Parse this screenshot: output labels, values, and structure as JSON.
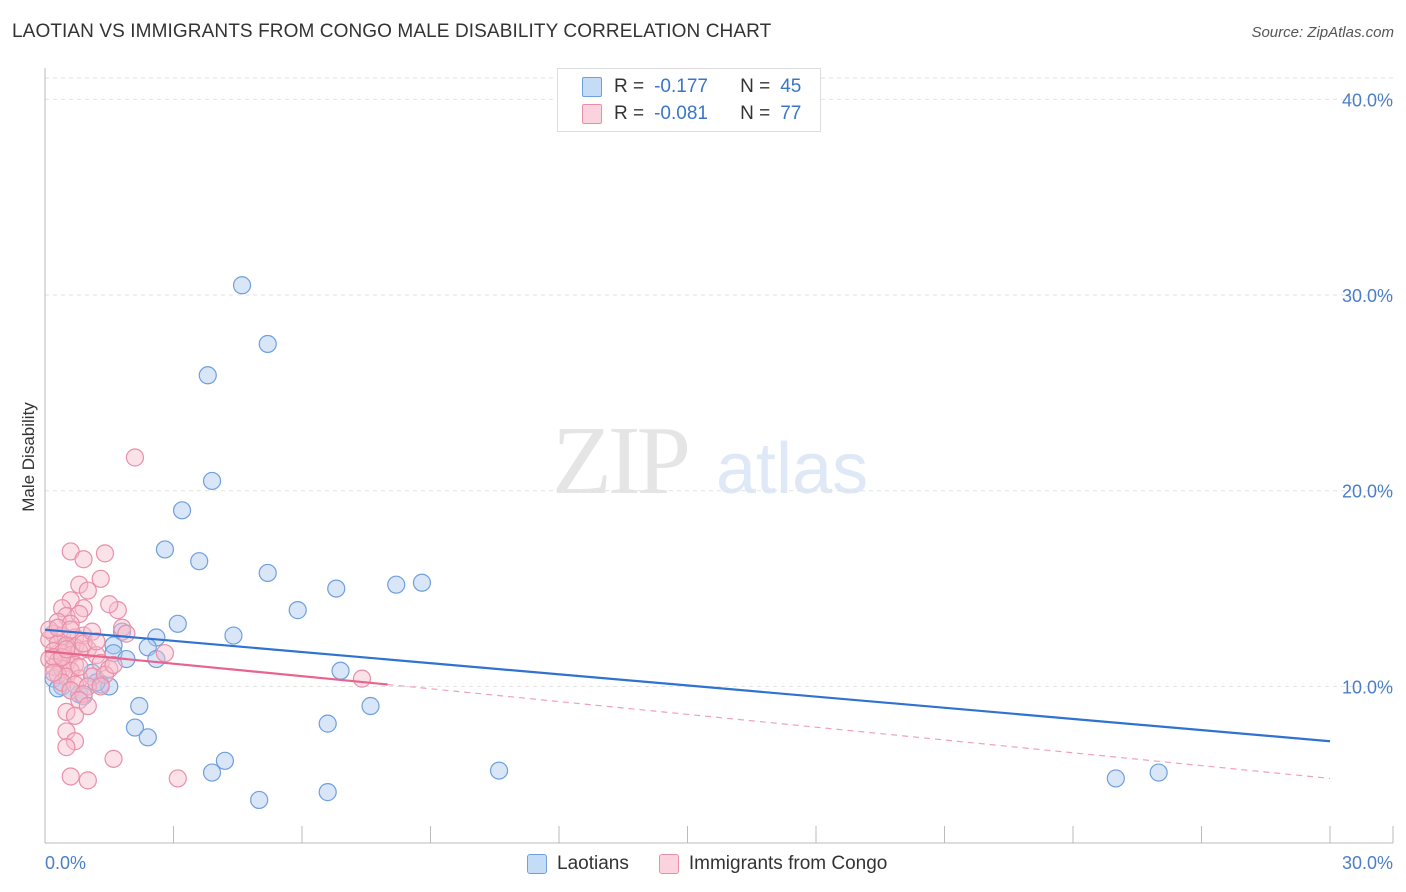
{
  "title": "LAOTIAN VS IMMIGRANTS FROM CONGO MALE DISABILITY CORRELATION CHART",
  "source": "Source: ZipAtlas.com",
  "watermark": {
    "zip": "ZIP",
    "atlas": "atlas"
  },
  "legend": {
    "rows": [
      {
        "r_label": "R =",
        "r_value": "-0.177",
        "n_label": "N =",
        "n_value": "45",
        "color": "#a9c8f0",
        "border": "#6f9fdc"
      },
      {
        "r_label": "R =",
        "r_value": "-0.081",
        "n_label": "N =",
        "n_value": "77",
        "color": "#f7bccd",
        "border": "#e88fa9"
      }
    ]
  },
  "bottom_legend": [
    {
      "label": "Laotians",
      "color": "#c5dcf6",
      "border": "#6f9fdc"
    },
    {
      "label": "Immigrants from Congo",
      "color": "#fbd3df",
      "border": "#e88fa9"
    }
  ],
  "chart_data": {
    "type": "scatter",
    "title": "LAOTIAN VS IMMIGRANTS FROM CONGO MALE DISABILITY CORRELATION CHART",
    "xlabel": "",
    "ylabel": "Male Disability",
    "xlim": [
      0,
      30
    ],
    "ylim": [
      2.0,
      41.5
    ],
    "x_tick_labels": [
      "0.0%",
      "30.0%"
    ],
    "y_ticks": [
      10,
      20,
      30,
      40
    ],
    "y_tick_labels": [
      "10.0%",
      "20.0%",
      "30.0%",
      "40.0%"
    ],
    "grid": true,
    "series": [
      {
        "name": "Laotians",
        "color": "#6f9fdc",
        "fill": "rgba(169,200,240,0.45)",
        "trend": {
          "x": [
            0,
            30
          ],
          "y": [
            12.9,
            7.2
          ],
          "color": "#2f72d0"
        },
        "points": [
          [
            4.6,
            30.5
          ],
          [
            5.2,
            27.5
          ],
          [
            3.8,
            25.9
          ],
          [
            3.9,
            20.5
          ],
          [
            3.2,
            19.0
          ],
          [
            2.8,
            17.0
          ],
          [
            3.6,
            16.4
          ],
          [
            5.2,
            15.8
          ],
          [
            6.8,
            15.0
          ],
          [
            8.2,
            15.2
          ],
          [
            8.8,
            15.3
          ],
          [
            5.9,
            13.9
          ],
          [
            3.1,
            13.2
          ],
          [
            1.8,
            12.8
          ],
          [
            2.6,
            12.5
          ],
          [
            4.4,
            12.6
          ],
          [
            1.6,
            12.1
          ],
          [
            2.4,
            12.0
          ],
          [
            1.6,
            11.7
          ],
          [
            2.6,
            11.4
          ],
          [
            1.9,
            11.4
          ],
          [
            1.1,
            10.7
          ],
          [
            6.9,
            10.8
          ],
          [
            0.2,
            10.4
          ],
          [
            0.4,
            10.0
          ],
          [
            0.3,
            9.9
          ],
          [
            0.6,
            9.8
          ],
          [
            0.8,
            9.6
          ],
          [
            1.3,
            10.1
          ],
          [
            1.5,
            10.0
          ],
          [
            2.2,
            9.0
          ],
          [
            7.6,
            9.0
          ],
          [
            6.6,
            8.1
          ],
          [
            2.1,
            7.9
          ],
          [
            2.4,
            7.4
          ],
          [
            4.2,
            6.2
          ],
          [
            3.9,
            5.6
          ],
          [
            10.6,
            5.7
          ],
          [
            5.0,
            4.2
          ],
          [
            6.6,
            4.6
          ],
          [
            25.0,
            5.3
          ],
          [
            26.0,
            5.6
          ],
          [
            0.9,
            9.5
          ],
          [
            0.5,
            12.0
          ],
          [
            1.2,
            10.2
          ]
        ]
      },
      {
        "name": "Immigrants from Congo",
        "color": "#e88fa9",
        "fill": "rgba(247,188,205,0.45)",
        "trend": {
          "x": [
            0,
            8
          ],
          "y": [
            11.8,
            10.1
          ],
          "color": "#e8648c"
        },
        "trend_ext": {
          "x": [
            8,
            30
          ],
          "y": [
            10.1,
            5.3
          ],
          "color": "#f0a0b8"
        },
        "points": [
          [
            2.1,
            21.7
          ],
          [
            0.6,
            16.9
          ],
          [
            1.4,
            16.8
          ],
          [
            0.9,
            16.5
          ],
          [
            1.3,
            15.5
          ],
          [
            0.8,
            15.2
          ],
          [
            1.0,
            14.9
          ],
          [
            0.6,
            14.4
          ],
          [
            0.4,
            14.0
          ],
          [
            0.9,
            14.0
          ],
          [
            1.7,
            13.9
          ],
          [
            0.5,
            13.6
          ],
          [
            0.8,
            13.7
          ],
          [
            0.3,
            13.3
          ],
          [
            0.6,
            13.2
          ],
          [
            1.8,
            13.0
          ],
          [
            0.2,
            12.7
          ],
          [
            0.4,
            12.6
          ],
          [
            0.7,
            12.5
          ],
          [
            0.9,
            12.6
          ],
          [
            0.1,
            12.4
          ],
          [
            0.3,
            12.2
          ],
          [
            0.5,
            12.1
          ],
          [
            0.7,
            12.0
          ],
          [
            1.0,
            11.9
          ],
          [
            0.2,
            11.8
          ],
          [
            0.4,
            11.7
          ],
          [
            0.6,
            11.6
          ],
          [
            0.8,
            11.8
          ],
          [
            1.2,
            11.6
          ],
          [
            2.8,
            11.7
          ],
          [
            0.1,
            11.4
          ],
          [
            0.3,
            11.3
          ],
          [
            0.5,
            11.2
          ],
          [
            0.7,
            11.1
          ],
          [
            1.3,
            11.2
          ],
          [
            0.2,
            11.0
          ],
          [
            0.4,
            10.9
          ],
          [
            0.6,
            10.8
          ],
          [
            1.5,
            10.9
          ],
          [
            0.3,
            10.6
          ],
          [
            0.5,
            10.5
          ],
          [
            0.8,
            10.4
          ],
          [
            1.1,
            10.5
          ],
          [
            1.4,
            10.6
          ],
          [
            0.4,
            10.2
          ],
          [
            0.7,
            10.1
          ],
          [
            1.0,
            10.0
          ],
          [
            1.3,
            10.0
          ],
          [
            0.6,
            9.8
          ],
          [
            0.9,
            9.6
          ],
          [
            0.8,
            9.3
          ],
          [
            1.0,
            9.0
          ],
          [
            0.5,
            8.7
          ],
          [
            0.7,
            8.5
          ],
          [
            0.5,
            7.7
          ],
          [
            0.7,
            7.2
          ],
          [
            0.5,
            6.9
          ],
          [
            1.6,
            6.3
          ],
          [
            0.6,
            5.4
          ],
          [
            1.0,
            5.2
          ],
          [
            3.1,
            5.3
          ],
          [
            7.4,
            10.4
          ],
          [
            0.2,
            11.5
          ],
          [
            0.1,
            12.9
          ],
          [
            0.9,
            12.2
          ],
          [
            1.1,
            12.8
          ],
          [
            0.3,
            13.0
          ],
          [
            1.6,
            11.1
          ],
          [
            1.9,
            12.7
          ],
          [
            0.6,
            12.9
          ],
          [
            0.2,
            10.7
          ],
          [
            0.4,
            11.5
          ],
          [
            1.2,
            12.3
          ],
          [
            0.8,
            11.0
          ],
          [
            1.5,
            14.2
          ],
          [
            0.5,
            11.9
          ]
        ]
      }
    ]
  }
}
